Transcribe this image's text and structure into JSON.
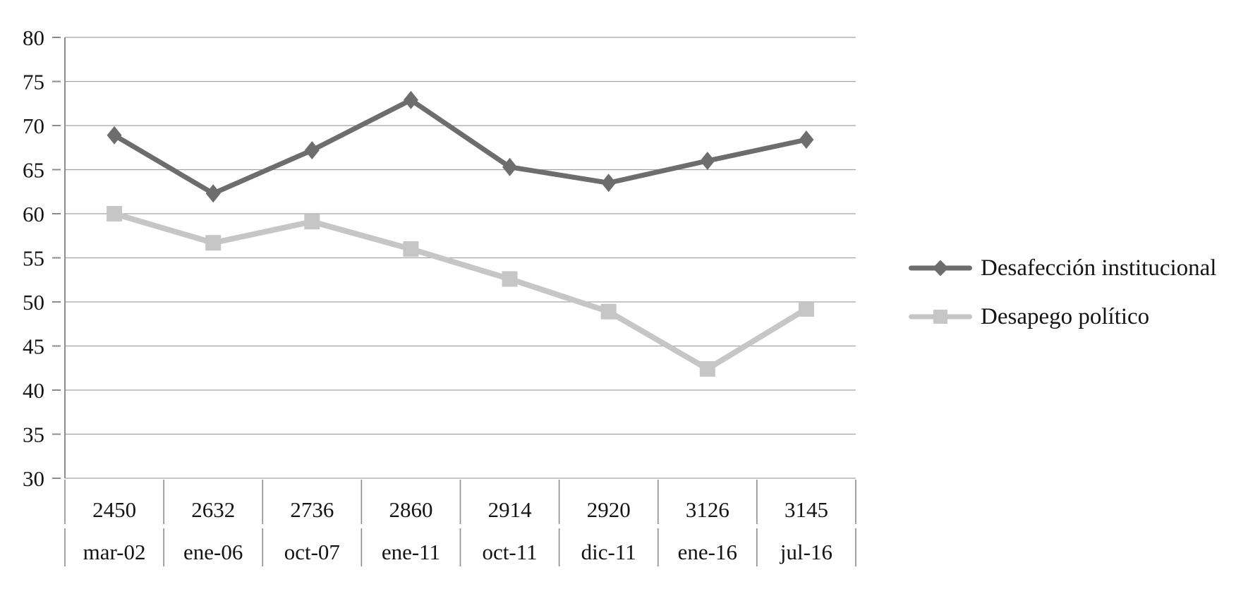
{
  "chart_data": {
    "type": "line",
    "title": "",
    "xlabel": "",
    "ylabel": "",
    "ylim": [
      30,
      80
    ],
    "y_ticks": [
      80,
      75,
      70,
      65,
      60,
      55,
      50,
      45,
      40,
      35,
      30
    ],
    "grid": true,
    "legend_position": "right-middle",
    "categories": [
      "mar-02",
      "ene-06",
      "oct-07",
      "ene-11",
      "oct-11",
      "dic-11",
      "ene-16",
      "jul-16"
    ],
    "x_axis_rows": [
      {
        "name": "study-number",
        "labels": [
          "2450",
          "2632",
          "2736",
          "2860",
          "2914",
          "2920",
          "3126",
          "3145"
        ]
      },
      {
        "name": "date",
        "labels": [
          "mar-02",
          "ene-06",
          "oct-07",
          "ene-11",
          "oct-11",
          "dic-11",
          "ene-16",
          "jul-16"
        ]
      }
    ],
    "series": [
      {
        "name": "Desafección institucional",
        "marker": "diamond",
        "color": "#6d6d6d",
        "line_width": 7,
        "values": [
          68.9,
          62.3,
          67.2,
          72.9,
          65.3,
          63.5,
          66.0,
          68.4
        ]
      },
      {
        "name": "Desapego político",
        "marker": "square",
        "color": "#c6c6c6",
        "line_width": 8,
        "values": [
          60.0,
          56.7,
          59.1,
          56.0,
          52.6,
          48.9,
          42.4,
          49.2
        ]
      }
    ]
  },
  "style": {
    "background": "#ffffff",
    "grid_color": "#a3a3a3",
    "axis_color": "#8c8c8c",
    "table_line_color": "#8c8c8c",
    "text_color": "#141414"
  }
}
